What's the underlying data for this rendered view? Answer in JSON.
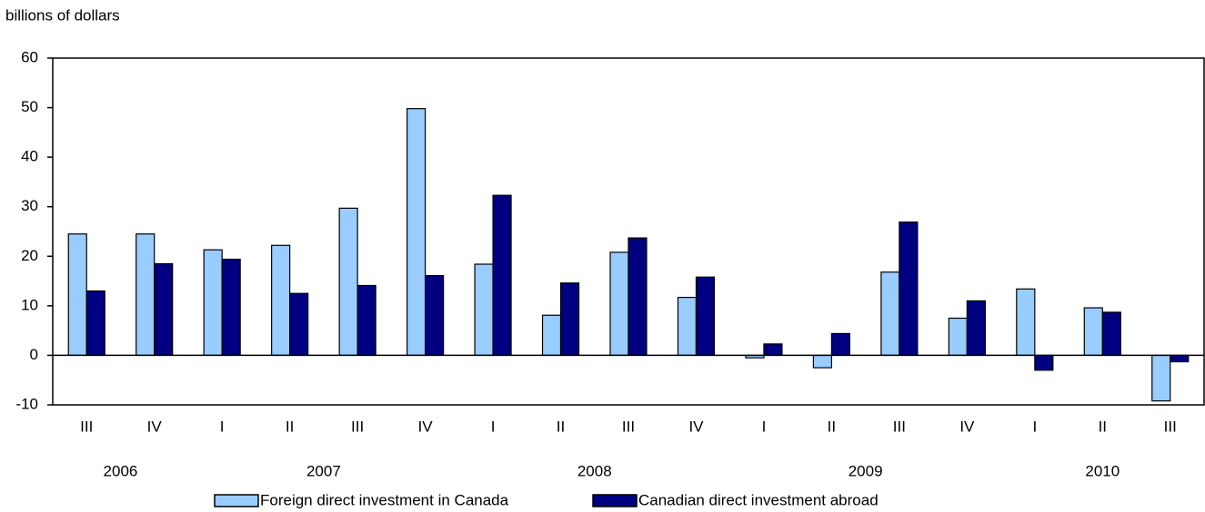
{
  "chart_data": {
    "type": "bar",
    "ylabel": "billions of dollars",
    "groups": [
      {
        "label": "2006",
        "categories": [
          "III",
          "IV"
        ]
      },
      {
        "label": "2007",
        "categories": [
          "I",
          "II",
          "III",
          "IV"
        ]
      },
      {
        "label": "2008",
        "categories": [
          "I",
          "II",
          "III",
          "IV"
        ]
      },
      {
        "label": "2009",
        "categories": [
          "I",
          "II",
          "III",
          "IV"
        ]
      },
      {
        "label": "2010",
        "categories": [
          "I",
          "II",
          "III"
        ]
      }
    ],
    "series": [
      {
        "name": "Foreign direct investment in Canada",
        "color": "#99ccff",
        "values": [
          24.5,
          24.5,
          21.3,
          22.2,
          29.7,
          49.8,
          18.4,
          8.1,
          20.8,
          11.7,
          -0.5,
          -2.5,
          16.8,
          7.5,
          13.4,
          9.6,
          -9.2
        ]
      },
      {
        "name": "Canadian direct investment abroad",
        "color": "#000080",
        "values": [
          13,
          18.5,
          19.4,
          12.5,
          14.1,
          16.1,
          32.3,
          14.6,
          23.7,
          15.8,
          2.3,
          4.4,
          26.9,
          11,
          -3,
          8.7,
          -1.3
        ]
      }
    ],
    "ylim": [
      -10,
      60
    ],
    "yticks": [
      -10,
      0,
      10,
      20,
      30,
      40,
      50,
      60
    ],
    "legend": "bottom"
  }
}
